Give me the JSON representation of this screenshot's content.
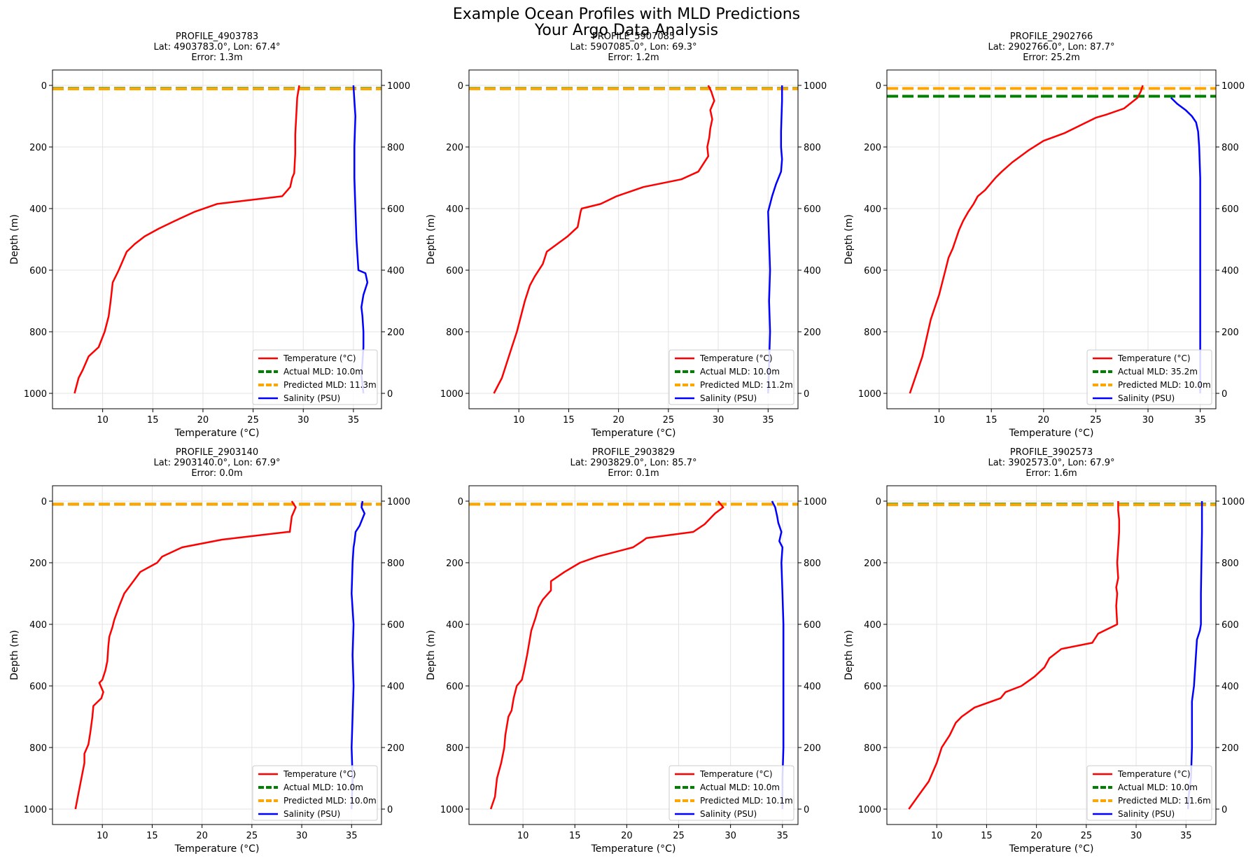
{
  "figure": {
    "title_line1": "Example Ocean Profiles with MLD Predictions",
    "title_line2": "Your Argo Data Analysis"
  },
  "chart_data": [
    {
      "type": "line",
      "title": "PROFILE_4903783",
      "subtitle": "Lat: 4903783.0°, Lon: 67.4°",
      "error_text": "Error: 1.3m",
      "xlabel": "Temperature (°C)",
      "ylabel": "Depth (m)",
      "xlim": [
        5.0,
        37.8
      ],
      "xticks": [
        10,
        15,
        20,
        25,
        30,
        35
      ],
      "ylim": [
        1050,
        -50
      ],
      "yticks": [
        0,
        200,
        400,
        600,
        800,
        1000
      ],
      "y2ticks": [
        1000,
        800,
        600,
        400,
        200,
        0
      ],
      "grid": true,
      "legend_loc": "lower right",
      "temperature": {
        "name": "Temperature (°C)",
        "color": "#ff0000",
        "x": [
          29.6,
          29.4,
          29.3,
          29.2,
          29.2,
          29.1,
          28.9,
          28.7,
          27.9,
          21.4,
          19.2,
          17.2,
          15.6,
          14.2,
          13.2,
          12.4,
          12.0,
          11.6,
          11.0,
          10.8,
          10.6,
          10.2,
          9.6,
          8.6,
          8.0,
          7.6,
          7.2
        ],
        "y": [
          0,
          40,
          100,
          160,
          220,
          285,
          300,
          330,
          360,
          385,
          410,
          440,
          465,
          490,
          515,
          540,
          570,
          600,
          640,
          700,
          750,
          800,
          850,
          880,
          925,
          950,
          1000
        ]
      },
      "salinity": {
        "name": "Salinity (PSU)",
        "color": "#0000ff",
        "x": [
          35.0,
          35.1,
          35.2,
          35.1,
          35.1,
          35.2,
          35.3,
          35.5,
          36.2,
          36.4,
          36.0,
          35.8,
          35.9,
          36.0,
          36.0,
          35.9,
          35.8,
          36.0
        ],
        "y": [
          1000,
          950,
          900,
          800,
          700,
          600,
          500,
          400,
          390,
          360,
          320,
          280,
          250,
          200,
          150,
          100,
          60,
          0
        ]
      },
      "actual_mld": {
        "label": "Actual MLD: 10.0m",
        "value": 10.0,
        "color": "#008000"
      },
      "predicted_mld": {
        "label": "Predicted MLD: 11.3m",
        "value": 11.3,
        "color": "#ffa500"
      }
    },
    {
      "type": "line",
      "title": "PROFILE_5907085",
      "subtitle": "Lat: 5907085.0°, Lon: 69.3°",
      "error_text": "Error: 1.2m",
      "xlabel": "Temperature (°C)",
      "ylabel": "Depth (m)",
      "xlim": [
        5.0,
        38.0
      ],
      "xticks": [
        10,
        15,
        20,
        25,
        30,
        35
      ],
      "ylim": [
        1050,
        -50
      ],
      "yticks": [
        0,
        200,
        400,
        600,
        800,
        1000
      ],
      "y2ticks": [
        1000,
        800,
        600,
        400,
        200,
        0
      ],
      "grid": true,
      "legend_loc": "lower right",
      "temperature": {
        "name": "Temperature (°C)",
        "color": "#ff0000",
        "x": [
          29.0,
          29.3,
          29.6,
          29.2,
          29.4,
          29.2,
          29.1,
          28.9,
          29.0,
          28.0,
          26.3,
          22.5,
          19.8,
          18.2,
          16.3,
          16.2,
          15.9,
          14.9,
          12.8,
          12.4,
          11.6,
          11.1,
          10.6,
          10.2,
          9.8,
          9.3,
          8.8,
          8.3,
          7.5
        ],
        "y": [
          0,
          20,
          50,
          80,
          110,
          140,
          170,
          200,
          230,
          280,
          305,
          330,
          360,
          385,
          400,
          410,
          460,
          490,
          540,
          580,
          620,
          650,
          700,
          750,
          800,
          850,
          900,
          950,
          1000
        ]
      },
      "salinity": {
        "name": "Salinity (PSU)",
        "color": "#0000ff",
        "x": [
          35.0,
          35.1,
          35.2,
          35.1,
          35.2,
          35.0,
          35.4,
          35.8,
          36.3,
          36.4,
          36.3,
          36.3,
          36.4,
          36.4
        ],
        "y": [
          0,
          100,
          200,
          300,
          400,
          590,
          640,
          680,
          720,
          760,
          800,
          850,
          950,
          1000
        ]
      },
      "actual_mld": {
        "label": "Actual MLD: 10.0m",
        "value": 10.0,
        "color": "#008000"
      },
      "predicted_mld": {
        "label": "Predicted MLD: 11.2m",
        "value": 11.2,
        "color": "#ffa500"
      }
    },
    {
      "type": "line",
      "title": "PROFILE_2902766",
      "subtitle": "Lat: 2902766.0°, Lon: 87.7°",
      "error_text": "Error: 25.2m",
      "xlabel": "Temperature (°C)",
      "ylabel": "Depth (m)",
      "xlim": [
        5.0,
        36.5
      ],
      "xticks": [
        10,
        15,
        20,
        25,
        30,
        35
      ],
      "ylim": [
        1050,
        -50
      ],
      "yticks": [
        0,
        200,
        400,
        600,
        800,
        1000
      ],
      "y2ticks": [
        1000,
        800,
        600,
        400,
        200,
        0
      ],
      "grid": true,
      "legend_loc": "lower right",
      "temperature": {
        "name": "Temperature (°C)",
        "color": "#ff0000",
        "x": [
          29.5,
          29.3,
          29.0,
          27.7,
          26.0,
          25.0,
          23.5,
          22.0,
          20.0,
          18.6,
          17.0,
          16.0,
          15.4,
          14.9,
          14.4,
          13.7,
          13.3,
          12.8,
          12.3,
          11.9,
          11.6,
          11.3,
          10.9,
          10.6,
          10.3,
          10.0,
          9.6,
          9.2,
          8.8,
          8.4,
          8.0,
          7.5,
          7.2
        ],
        "y": [
          0,
          20,
          40,
          75,
          95,
          105,
          130,
          155,
          180,
          210,
          250,
          280,
          300,
          320,
          340,
          360,
          385,
          410,
          440,
          470,
          500,
          530,
          560,
          600,
          640,
          680,
          720,
          760,
          820,
          880,
          920,
          970,
          1000
        ]
      },
      "salinity": {
        "name": "Salinity (PSU)",
        "color": "#0000ff",
        "x": [
          35.0,
          35.0,
          35.0,
          35.0,
          35.0,
          34.9,
          34.8,
          34.6,
          34.2,
          33.6,
          32.8,
          32.2
        ],
        "y": [
          0,
          200,
          400,
          600,
          700,
          800,
          850,
          880,
          900,
          920,
          940,
          960
        ]
      },
      "actual_mld": {
        "label": "Actual MLD: 35.2m",
        "value": 35.2,
        "color": "#008000"
      },
      "predicted_mld": {
        "label": "Predicted MLD: 10.0m",
        "value": 10.0,
        "color": "#ffa500"
      }
    },
    {
      "type": "line",
      "title": "PROFILE_2903140",
      "subtitle": "Lat: 2903140.0°, Lon: 67.9°",
      "error_text": "Error: 0.0m",
      "xlabel": "Temperature (°C)",
      "ylabel": "Depth (m)",
      "xlim": [
        5.0,
        38.0
      ],
      "xticks": [
        10,
        15,
        20,
        25,
        30,
        35
      ],
      "ylim": [
        1050,
        -50
      ],
      "yticks": [
        0,
        200,
        400,
        600,
        800,
        1000
      ],
      "y2ticks": [
        1000,
        800,
        600,
        400,
        200,
        0
      ],
      "grid": true,
      "legend_loc": "lower right",
      "temperature": {
        "name": "Temperature (°C)",
        "color": "#ff0000",
        "x": [
          29.0,
          29.4,
          29.0,
          28.8,
          28.6,
          22.0,
          18.0,
          16.0,
          15.5,
          13.8,
          13.0,
          12.2,
          11.7,
          11.2,
          11.0,
          10.7,
          10.6,
          10.5,
          10.3,
          10.0,
          9.7,
          10.1,
          9.9,
          9.1,
          9.0,
          8.8,
          8.6,
          8.2,
          8.2,
          7.9,
          7.6,
          7.3
        ],
        "y": [
          0,
          20,
          50,
          100,
          100,
          125,
          150,
          180,
          200,
          230,
          265,
          300,
          340,
          385,
          410,
          440,
          470,
          520,
          550,
          580,
          590,
          620,
          640,
          665,
          700,
          750,
          790,
          820,
          850,
          900,
          950,
          1000
        ]
      },
      "salinity": {
        "name": "Salinity (PSU)",
        "color": "#0000ff",
        "x": [
          35.0,
          35.1,
          35.0,
          35.1,
          35.2,
          35.1,
          35.2,
          35.0,
          35.1,
          35.2,
          35.3,
          35.4,
          35.8,
          36.3,
          36.0,
          36.1
        ],
        "y": [
          0,
          100,
          200,
          300,
          400,
          500,
          600,
          700,
          800,
          850,
          870,
          900,
          920,
          960,
          980,
          1000
        ]
      },
      "actual_mld": {
        "label": "Actual MLD: 10.0m",
        "value": 10.0,
        "color": "#008000"
      },
      "predicted_mld": {
        "label": "Predicted MLD: 10.0m",
        "value": 10.0,
        "color": "#ffa500"
      }
    },
    {
      "type": "line",
      "title": "PROFILE_2903829",
      "subtitle": "Lat: 2903829.0°, Lon: 85.7°",
      "error_text": "Error: 0.1m",
      "xlabel": "Temperature (°C)",
      "ylabel": "Depth (m)",
      "xlim": [
        4.8,
        36.5
      ],
      "xticks": [
        10,
        15,
        20,
        25,
        30,
        35
      ],
      "ylim": [
        1050,
        -50
      ],
      "yticks": [
        0,
        200,
        400,
        600,
        800,
        1000
      ],
      "y2ticks": [
        1000,
        800,
        600,
        400,
        200,
        0
      ],
      "grid": true,
      "legend_loc": "lower right",
      "temperature": {
        "name": "Temperature (°C)",
        "color": "#ff0000",
        "x": [
          28.8,
          29.3,
          28.5,
          27.5,
          26.4,
          21.9,
          21.5,
          20.6,
          17.2,
          15.5,
          14.0,
          12.7,
          12.7,
          11.9,
          11.5,
          11.2,
          10.8,
          10.6,
          10.4,
          10.1,
          9.9,
          9.4,
          9.1,
          8.9,
          8.6,
          8.3,
          8.2,
          7.9,
          7.5,
          7.3,
          6.9
        ],
        "y": [
          0,
          20,
          40,
          75,
          100,
          120,
          130,
          150,
          180,
          200,
          230,
          260,
          290,
          320,
          345,
          380,
          420,
          460,
          500,
          550,
          580,
          600,
          640,
          680,
          700,
          760,
          800,
          850,
          900,
          960,
          1000
        ]
      },
      "salinity": {
        "name": "Salinity (PSU)",
        "color": "#0000ff",
        "x": [
          35.0,
          35.0,
          35.1,
          35.1,
          35.1,
          35.1,
          35.0,
          34.9,
          35.0,
          34.7,
          34.9,
          34.6,
          34.5,
          34.3,
          34.0
        ],
        "y": [
          0,
          100,
          200,
          300,
          400,
          600,
          700,
          800,
          850,
          870,
          900,
          930,
          950,
          980,
          1000
        ]
      },
      "actual_mld": {
        "label": "Actual MLD: 10.0m",
        "value": 10.0,
        "color": "#008000"
      },
      "predicted_mld": {
        "label": "Predicted MLD: 10.1m",
        "value": 10.1,
        "color": "#ffa500"
      }
    },
    {
      "type": "line",
      "title": "PROFILE_3902573",
      "subtitle": "Lat: 3902573.0°, Lon: 67.9°",
      "error_text": "Error: 1.6m",
      "xlabel": "Temperature (°C)",
      "ylabel": "Depth (m)",
      "xlim": [
        5.0,
        38.0
      ],
      "xticks": [
        10,
        15,
        20,
        25,
        30,
        35
      ],
      "ylim": [
        1050,
        -50
      ],
      "yticks": [
        0,
        200,
        400,
        600,
        800,
        1000
      ],
      "y2ticks": [
        1000,
        800,
        600,
        400,
        200,
        0
      ],
      "grid": true,
      "legend_loc": "lower right",
      "temperature": {
        "name": "Temperature (°C)",
        "color": "#ff0000",
        "x": [
          28.2,
          28.2,
          28.3,
          28.3,
          28.2,
          28.1,
          28.2,
          28.0,
          28.1,
          28.0,
          28.1,
          26.2,
          25.8,
          25.6,
          22.5,
          21.3,
          20.8,
          19.8,
          18.5,
          16.9,
          16.4,
          13.8,
          12.5,
          11.9,
          11.3,
          10.5,
          10.0,
          9.6,
          9.2,
          8.3,
          7.2
        ],
        "y": [
          0,
          30,
          60,
          100,
          150,
          200,
          250,
          280,
          300,
          340,
          400,
          430,
          450,
          460,
          480,
          510,
          540,
          570,
          600,
          620,
          640,
          670,
          700,
          720,
          760,
          800,
          850,
          880,
          910,
          950,
          1000
        ]
      },
      "salinity": {
        "name": "Salinity (PSU)",
        "color": "#0000ff",
        "x": [
          35.2,
          35.3,
          35.5,
          35.6,
          35.6,
          35.6,
          35.8,
          36.0,
          36.1,
          36.4,
          36.5,
          36.5,
          36.6,
          36.6
        ],
        "y": [
          0,
          50,
          100,
          200,
          300,
          350,
          400,
          500,
          550,
          580,
          600,
          700,
          900,
          1000
        ]
      },
      "actual_mld": {
        "label": "Actual MLD: 10.0m",
        "value": 10.0,
        "color": "#008000"
      },
      "predicted_mld": {
        "label": "Predicted MLD: 11.6m",
        "value": 11.6,
        "color": "#ffa500"
      }
    }
  ]
}
